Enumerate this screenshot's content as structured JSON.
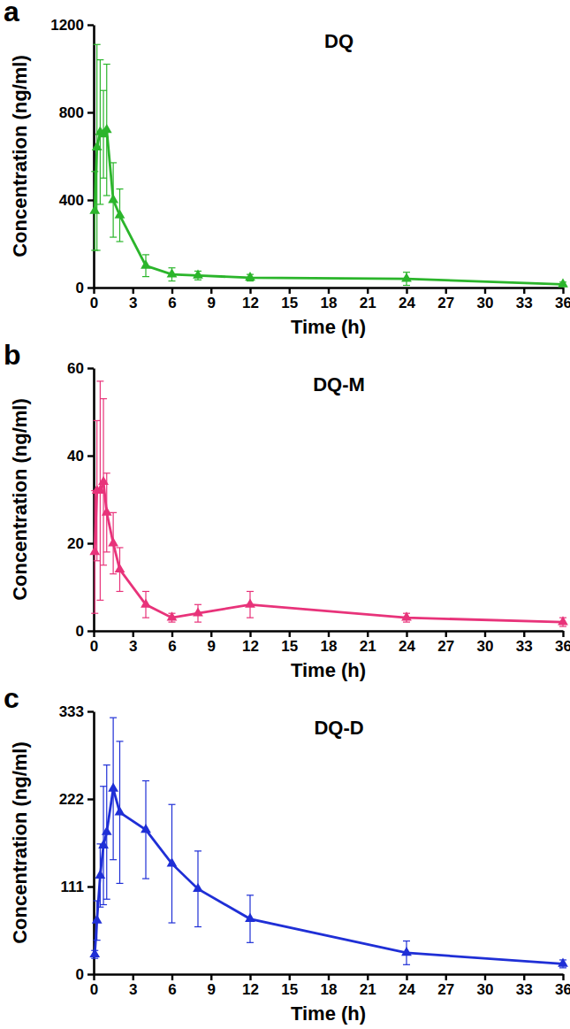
{
  "chart_data": [
    {
      "type": "line",
      "panel_label": "a",
      "title": "DQ",
      "x_label": "Time (h)",
      "y_label": "Concentration (ng/ml)",
      "x": [
        0.083,
        0.25,
        0.5,
        0.75,
        1,
        1.5,
        2,
        4,
        6,
        8,
        12,
        24,
        36
      ],
      "values": [
        350,
        640,
        710,
        700,
        720,
        400,
        330,
        100,
        60,
        55,
        45,
        40,
        15
      ],
      "errors": [
        180,
        470,
        330,
        200,
        300,
        170,
        120,
        50,
        30,
        20,
        15,
        30,
        10
      ],
      "color": "#2bb52b",
      "marker": "triangle",
      "xlim": [
        0,
        36
      ],
      "xticks": [
        0,
        3,
        6,
        9,
        12,
        15,
        18,
        21,
        24,
        27,
        30,
        33,
        36
      ],
      "ylim": [
        0,
        1200
      ],
      "yticks": [
        0,
        400,
        800,
        1200
      ]
    },
    {
      "type": "line",
      "panel_label": "b",
      "title": "DQ-M",
      "x_label": "Time (h)",
      "y_label": "Concentration (ng/ml)",
      "x": [
        0.083,
        0.25,
        0.5,
        0.75,
        1,
        1.5,
        2,
        4,
        6,
        8,
        12,
        24,
        36
      ],
      "values": [
        18,
        32,
        32,
        34,
        27,
        20,
        14,
        6,
        3,
        4,
        6,
        3,
        2
      ],
      "errors": [
        14,
        16,
        25,
        19,
        9,
        7,
        5,
        3,
        1,
        2,
        3,
        1,
        1
      ],
      "color": "#e8337a",
      "marker": "triangle",
      "xlim": [
        0,
        36
      ],
      "xticks": [
        0,
        3,
        6,
        9,
        12,
        15,
        18,
        21,
        24,
        27,
        30,
        33,
        36
      ],
      "ylim": [
        0,
        60
      ],
      "yticks": [
        0,
        20,
        40,
        60
      ]
    },
    {
      "type": "line",
      "panel_label": "c",
      "title": "DQ-D",
      "x_label": "Time (h)",
      "y_label": "Concentration (ng/ml)",
      "x": [
        0.083,
        0.25,
        0.5,
        0.75,
        1,
        1.5,
        2,
        4,
        6,
        8,
        12,
        24,
        36
      ],
      "values": [
        25,
        68,
        125,
        163,
        180,
        235,
        205,
        183,
        140,
        108,
        70,
        27,
        13
      ],
      "errors": [
        5,
        25,
        40,
        75,
        85,
        90,
        90,
        62,
        75,
        48,
        30,
        15,
        5
      ],
      "color": "#1f2fd6",
      "marker": "triangle",
      "xlim": [
        0,
        36
      ],
      "xticks": [
        0,
        3,
        6,
        9,
        12,
        15,
        18,
        21,
        24,
        27,
        30,
        33,
        36
      ],
      "ylim": [
        0,
        333
      ],
      "yticks": [
        0,
        111,
        222,
        333
      ]
    }
  ]
}
